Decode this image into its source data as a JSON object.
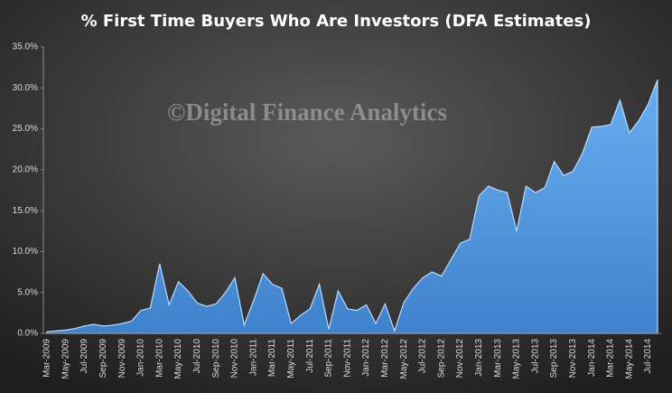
{
  "chart_data": {
    "type": "area",
    "title": "% First Time Buyers Who Are Investors (DFA Estimates)",
    "annotation": "©Digital Finance Analytics",
    "categories": [
      "Mar-2009",
      null,
      "May-2009",
      null,
      "Jul-2009",
      null,
      "Sep-2009",
      null,
      "Nov-2009",
      null,
      "Jan-2010",
      null,
      "Mar-2010",
      null,
      "May-2010",
      null,
      "Jul-2010",
      null,
      "Sep-2010",
      null,
      "Nov-2010",
      null,
      "Jan-2011",
      null,
      "Mar-2011",
      null,
      "May-2011",
      null,
      "Jul-2011",
      null,
      "Sep-2011",
      null,
      "Nov-2011",
      null,
      "Jan-2012",
      null,
      "Mar-2012",
      null,
      "May-2012",
      null,
      "Jul-2012",
      null,
      "Sep-2012",
      null,
      "Nov-2012",
      null,
      "Jan-2013",
      null,
      "Mar-2013",
      null,
      "May-2013",
      null,
      "Jul-2013",
      null,
      "Sep-2013",
      null,
      "Nov-2013",
      null,
      "Jan-2014",
      null,
      "Mar-2014",
      null,
      "May-2014",
      null,
      "Jul-2014",
      null
    ],
    "values": [
      0.2,
      0.3,
      0.4,
      0.6,
      0.9,
      1.1,
      0.9,
      1.0,
      1.2,
      1.5,
      2.8,
      3.1,
      8.5,
      3.5,
      6.3,
      5.2,
      3.7,
      3.3,
      3.6,
      5.0,
      6.8,
      1.0,
      4.0,
      7.3,
      6.0,
      5.5,
      1.2,
      2.2,
      3.0,
      6.0,
      0.5,
      5.2,
      3.0,
      2.8,
      3.5,
      1.2,
      3.6,
      0.3,
      3.8,
      5.5,
      6.8,
      7.5,
      7.0,
      9.0,
      11.0,
      11.5,
      16.8,
      18.0,
      17.5,
      17.2,
      12.5,
      18.0,
      17.2,
      17.8,
      21.0,
      19.3,
      19.8,
      22.0,
      25.2,
      25.3,
      25.5,
      28.5,
      24.5,
      26.0,
      28.0,
      31.0
    ],
    "color": "#4f95dc",
    "ylim": [
      0,
      35
    ],
    "yticks": [
      {
        "value": 0,
        "label": "0.0%"
      },
      {
        "value": 5,
        "label": "5.0%"
      },
      {
        "value": 10,
        "label": "10.0%"
      },
      {
        "value": 15,
        "label": "15.0%"
      },
      {
        "value": 20,
        "label": "20.0%"
      },
      {
        "value": 25,
        "label": "25.0%"
      },
      {
        "value": 30,
        "label": "30.0%"
      },
      {
        "value": 35,
        "label": "35.0%"
      }
    ],
    "grid": false
  }
}
